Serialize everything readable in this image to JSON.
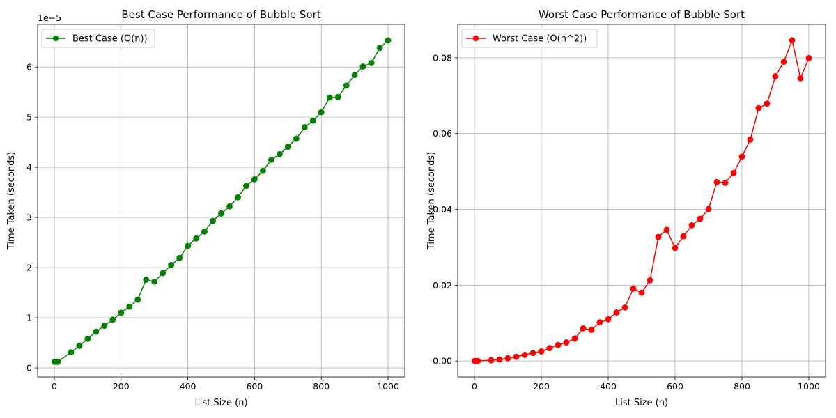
{
  "chart_data": [
    {
      "type": "line",
      "title": "Best Case Performance of Bubble Sort",
      "xlabel": "List Size (n)",
      "ylabel": "Time Taken (seconds)",
      "y_offset_label": "1e−5",
      "y_scale": 1e-05,
      "xlim": [
        -50,
        1050
      ],
      "ylim": [
        -0.18,
        6.85
      ],
      "x_ticks": [
        0,
        200,
        400,
        600,
        800,
        1000
      ],
      "x_tick_labels": [
        "0",
        "200",
        "400",
        "600",
        "800",
        "1000"
      ],
      "y_ticks": [
        0,
        1,
        2,
        3,
        4,
        5,
        6
      ],
      "y_tick_labels": [
        "0",
        "1",
        "2",
        "3",
        "4",
        "5",
        "6"
      ],
      "grid": true,
      "legend_position": "upper-left",
      "series": [
        {
          "name": "Best Case (O(n))",
          "color": "#008000",
          "marker": "circle",
          "x": [
            1,
            10,
            50,
            75,
            100,
            125,
            150,
            175,
            200,
            225,
            250,
            275,
            300,
            325,
            350,
            375,
            400,
            425,
            450,
            475,
            500,
            525,
            550,
            575,
            600,
            625,
            650,
            675,
            700,
            725,
            750,
            775,
            800,
            825,
            850,
            875,
            900,
            925,
            950,
            975,
            1000
          ],
          "y": [
            0.12,
            0.12,
            0.31,
            0.44,
            0.58,
            0.72,
            0.84,
            0.96,
            1.1,
            1.22,
            1.36,
            1.76,
            1.72,
            1.89,
            2.05,
            2.19,
            2.43,
            2.58,
            2.72,
            2.93,
            3.08,
            3.22,
            3.4,
            3.63,
            3.76,
            3.93,
            4.15,
            4.26,
            4.41,
            4.57,
            4.8,
            4.93,
            5.1,
            5.39,
            5.4,
            5.63,
            5.84,
            6.01,
            6.08,
            6.38,
            6.53
          ]
        }
      ]
    },
    {
      "type": "line",
      "title": "Worst Case Performance of Bubble Sort",
      "xlabel": "List Size (n)",
      "ylabel": "Time Taken (seconds)",
      "xlim": [
        -50,
        1050
      ],
      "ylim": [
        -0.0042,
        0.0888
      ],
      "x_ticks": [
        0,
        200,
        400,
        600,
        800,
        1000
      ],
      "x_tick_labels": [
        "0",
        "200",
        "400",
        "600",
        "800",
        "1000"
      ],
      "y_ticks": [
        0,
        0.02,
        0.04,
        0.06,
        0.08
      ],
      "y_tick_labels": [
        "0.00",
        "0.02",
        "0.04",
        "0.06",
        "0.08"
      ],
      "grid": true,
      "legend_position": "upper-left",
      "series": [
        {
          "name": "Worst Case (O(n^2))",
          "color": "#ff0000",
          "marker": "circle",
          "x": [
            1,
            10,
            50,
            75,
            100,
            125,
            150,
            175,
            200,
            225,
            250,
            275,
            300,
            325,
            350,
            375,
            400,
            425,
            450,
            475,
            500,
            525,
            550,
            575,
            600,
            625,
            650,
            675,
            700,
            725,
            750,
            775,
            800,
            825,
            850,
            875,
            900,
            925,
            950,
            975,
            1000
          ],
          "y": [
            0.0,
            0.0,
            0.0002,
            0.0004,
            0.0007,
            0.0011,
            0.0016,
            0.0021,
            0.0025,
            0.0034,
            0.0042,
            0.0049,
            0.0059,
            0.0086,
            0.0082,
            0.0102,
            0.011,
            0.0128,
            0.0141,
            0.0191,
            0.018,
            0.0213,
            0.0327,
            0.0346,
            0.0298,
            0.0329,
            0.0358,
            0.0375,
            0.0401,
            0.0472,
            0.047,
            0.0496,
            0.0539,
            0.0584,
            0.0667,
            0.0679,
            0.0751,
            0.0789,
            0.0846,
            0.0746,
            0.0799
          ]
        }
      ]
    }
  ]
}
